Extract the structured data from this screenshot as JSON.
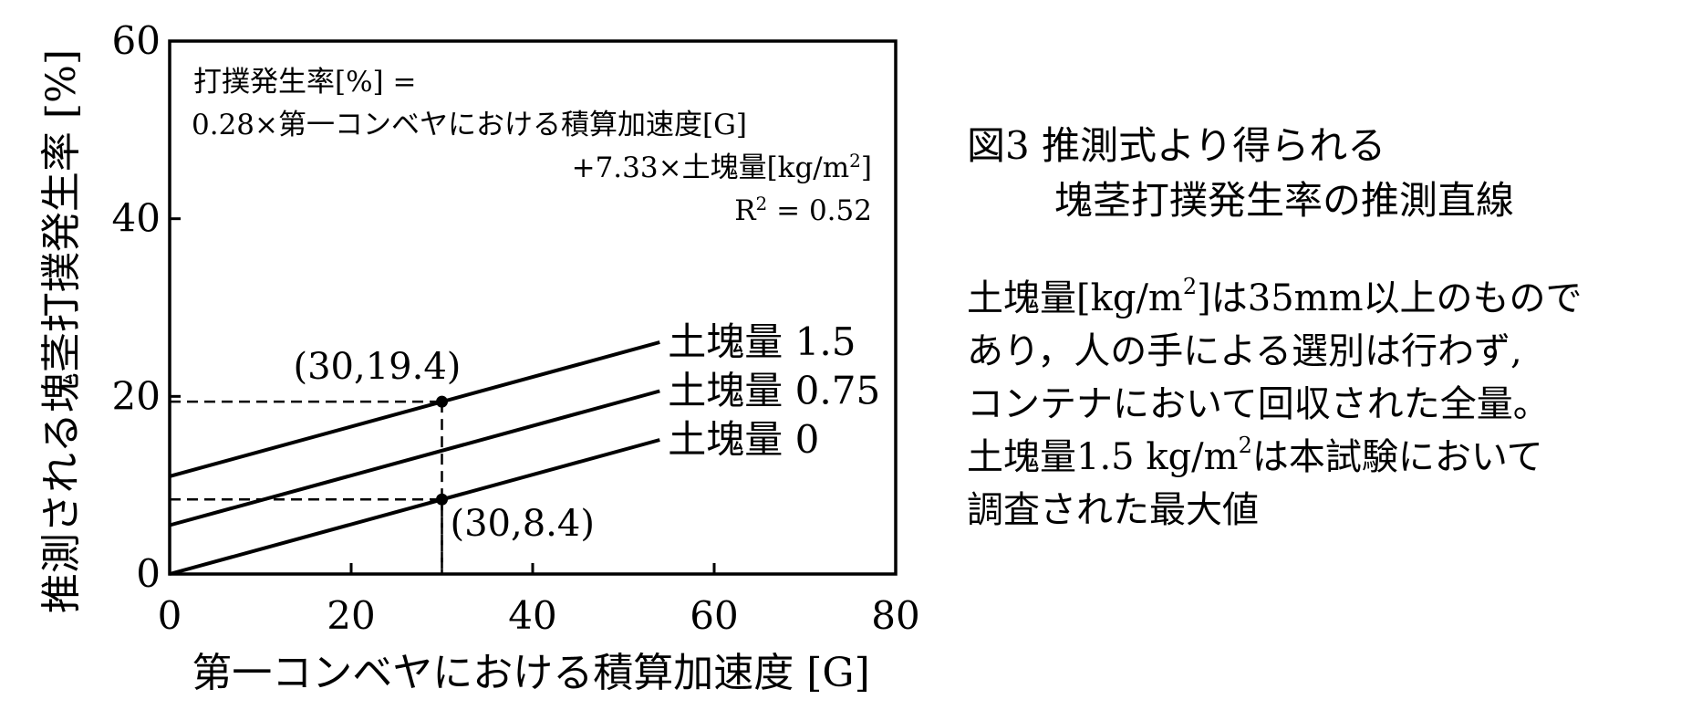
{
  "chart_data": {
    "type": "line",
    "xlabel": "第一コンベヤにおける積算加速度 [G]",
    "ylabel": "推測される塊茎打撲発生率 [%]",
    "xlim": [
      0,
      80
    ],
    "ylim": [
      0,
      60
    ],
    "x_ticks": [
      0,
      20,
      40,
      60,
      80
    ],
    "y_ticks": [
      0,
      20,
      40,
      60
    ],
    "x_tick_labels": [
      "0",
      "20",
      "40",
      "60",
      "80"
    ],
    "y_tick_labels": [
      "0",
      "20",
      "40",
      "60"
    ],
    "grid": false,
    "equation": {
      "line1": "打撲発生率[%] =",
      "line2": "0.28×第一コンベヤにおける積算加速度[G]",
      "line3_main": "+7.33×土塊量[kg/m",
      "line3_sup": "2",
      "line3_end": "]",
      "r2_main": "R",
      "r2_sup": "2",
      "r2_end": " = 0.52"
    },
    "series": [
      {
        "name": "土塊量 1.5",
        "x": [
          0,
          54
        ],
        "y": [
          11.0,
          26.1
        ]
      },
      {
        "name": "土塊量 0.75",
        "x": [
          0,
          54
        ],
        "y": [
          5.5,
          20.6
        ]
      },
      {
        "name": "土塊量 0",
        "x": [
          0,
          54
        ],
        "y": [
          0,
          15.1
        ]
      }
    ],
    "annotations": [
      {
        "label": "(30,19.4)",
        "x": 30,
        "y": 19.4
      },
      {
        "label": "(30,8.4)",
        "x": 30,
        "y": 8.4
      }
    ]
  },
  "caption": {
    "line1": "図3 推測式より得られる",
    "line2": "塊茎打撲発生率の推測直線"
  },
  "note": {
    "l1_a": "土塊量[kg/m",
    "l1_sup": "2",
    "l1_b": "]は35mm以上のもので",
    "l2": "あり，人の手による選別は行わず,",
    "l3": "コンテナにおいて回収された全量。",
    "l4_a": "土塊量1.5 kg/m",
    "l4_sup": "2",
    "l4_b": "は本試験において",
    "l5": "調査された最大値"
  }
}
